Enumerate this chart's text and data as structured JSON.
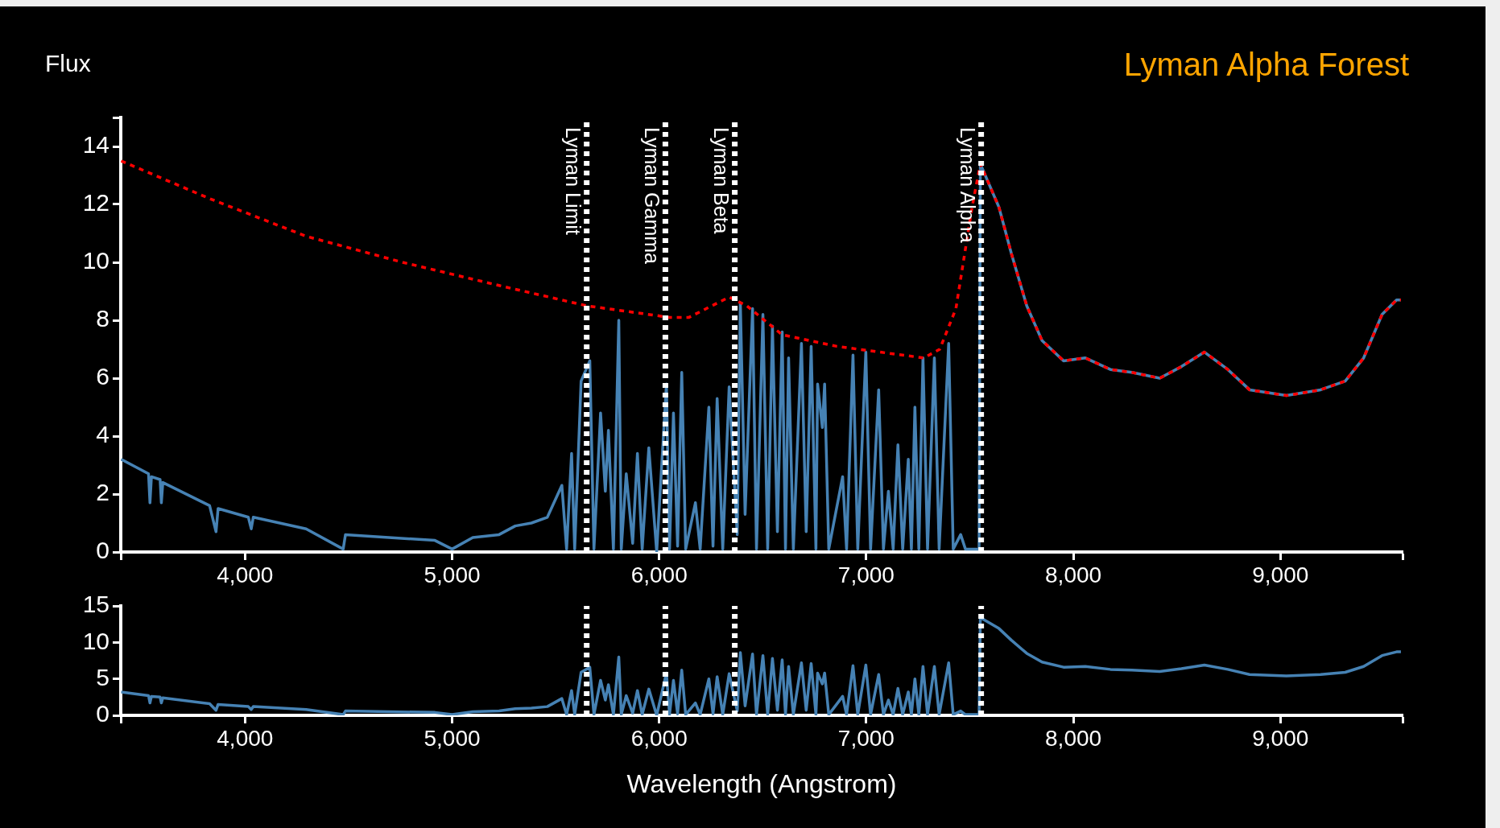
{
  "chart_data": [
    {
      "type": "line",
      "title": "Lyman Alpha Forest",
      "ylabel": "Flux",
      "xlim": [
        3400,
        9590
      ],
      "xticks": [
        {
          "value": 3400,
          "label": null
        },
        {
          "value": 4000,
          "label": "4,000"
        },
        {
          "value": 5000,
          "label": "5,000"
        },
        {
          "value": 6000,
          "label": "6,000"
        },
        {
          "value": 7000,
          "label": "7,000"
        },
        {
          "value": 8000,
          "label": "8,000"
        },
        {
          "value": 9000,
          "label": "9,000"
        },
        {
          "value": 9590,
          "label": null
        }
      ],
      "ylim": [
        0,
        15
      ],
      "yticks": [
        0,
        2,
        4,
        6,
        8,
        10,
        12,
        14,
        {
          "value": 15,
          "label": null
        }
      ],
      "series": [
        {
          "color": "#4682b4",
          "x": [
            3402,
            3534,
            3541,
            3548,
            3590,
            3596,
            3603,
            3829,
            3860,
            3870,
            4016,
            4030,
            4040,
            4295,
            4474,
            4485,
            4917,
            5000,
            5100,
            5227,
            5305,
            5383,
            5460,
            5530,
            5553,
            5577,
            5592,
            5623,
            5665,
            5685,
            5717,
            5740,
            5755,
            5779,
            5805,
            5817,
            5841,
            5872,
            5895,
            5918,
            5950,
            5988,
            6035,
            6050,
            6069,
            6089,
            6109,
            6128,
            6175,
            6198,
            6240,
            6260,
            6280,
            6307,
            6338,
            6377,
            6392,
            6415,
            6451,
            6470,
            6501,
            6524,
            6547,
            6571,
            6594,
            6610,
            6625,
            6648,
            6687,
            6710,
            6734,
            6757,
            6765,
            6788,
            6799,
            6819,
            6886,
            6905,
            6936,
            6959,
            6998,
            7021,
            7060,
            7083,
            7107,
            7130,
            7153,
            7176,
            7203,
            7218,
            7235,
            7254,
            7274,
            7296,
            7329,
            7352,
            7398,
            7420,
            7456,
            7479,
            7545,
            7551,
            7641,
            7701,
            7775,
            7849,
            7953,
            8058,
            8179,
            8283,
            8417,
            8522,
            8633,
            8746,
            8851,
            9029,
            9194,
            9313,
            9402,
            9491,
            9561,
            9582
          ],
          "values": [
            3.2,
            2.7,
            1.7,
            2.6,
            2.5,
            1.7,
            2.4,
            1.6,
            0.7,
            1.5,
            1.2,
            0.8,
            1.2,
            0.8,
            0.1,
            0.6,
            0.4,
            0.1,
            0.5,
            0.6,
            0.9,
            1.0,
            1.2,
            2.3,
            0.1,
            3.4,
            0.1,
            5.9,
            6.6,
            0.1,
            4.8,
            2.1,
            4.2,
            0.1,
            8.0,
            0.1,
            2.7,
            0.3,
            3.4,
            0.1,
            3.6,
            0.0,
            5.8,
            0.1,
            4.8,
            0.2,
            6.2,
            0.1,
            1.7,
            0.1,
            5.0,
            0.2,
            5.3,
            0.1,
            5.7,
            0.6,
            8.6,
            1.3,
            8.4,
            0.1,
            8.2,
            0.1,
            7.8,
            0.7,
            7.6,
            0.1,
            6.7,
            0.1,
            7.2,
            0.7,
            7.1,
            0.1,
            5.8,
            4.3,
            5.8,
            0.1,
            2.6,
            0.1,
            6.8,
            0.1,
            6.9,
            0.1,
            5.6,
            0.1,
            2.1,
            0.1,
            3.7,
            0.1,
            3.2,
            0.1,
            5.0,
            0.1,
            6.7,
            0.1,
            6.7,
            0.1,
            7.2,
            0.1,
            0.6,
            0.1,
            0.1,
            13.4,
            11.9,
            10.3,
            8.5,
            7.3,
            6.6,
            6.7,
            6.3,
            6.2,
            6.0,
            6.4,
            6.9,
            6.3,
            5.6,
            5.4,
            5.6,
            5.9,
            6.7,
            8.2,
            8.7,
            8.7
          ]
        },
        {
          "color": "#ff0000",
          "line_style": "dotted",
          "x": [
            3402,
            3829,
            4295,
            4761,
            5227,
            5650,
            6050,
            6144,
            6338,
            6423,
            6594,
            6858,
            7278,
            7355,
            7433,
            7511,
            7551,
            7641,
            7701,
            7775,
            7849,
            7953,
            8058,
            8179,
            8283,
            8417,
            8522,
            8633,
            8746,
            8851,
            9029,
            9194,
            9313,
            9402,
            9491,
            9561,
            9582
          ],
          "values": [
            13.5,
            12.2,
            10.9,
            10.0,
            9.2,
            8.5,
            8.1,
            8.1,
            8.8,
            8.5,
            7.5,
            7.1,
            6.7,
            7.0,
            8.4,
            11.9,
            13.4,
            11.9,
            10.3,
            8.5,
            7.3,
            6.6,
            6.7,
            6.3,
            6.2,
            6.0,
            6.4,
            6.9,
            6.3,
            5.6,
            5.4,
            5.6,
            5.9,
            6.7,
            8.2,
            8.7,
            8.7
          ]
        }
      ],
      "ref_lines": [
        {
          "axis": "x",
          "value": 5650,
          "label": "Lyman Limit",
          "color": "#ffffff",
          "line_style": "dotted"
        },
        {
          "axis": "x",
          "value": 6030,
          "label": "Lyman Gamma",
          "color": "#ffffff",
          "line_style": "dotted"
        },
        {
          "axis": "x",
          "value": 6365,
          "label": "Lyman Beta",
          "color": "#ffffff",
          "line_style": "dotted"
        },
        {
          "axis": "x",
          "value": 7555,
          "label": "Lyman Alpha",
          "color": "#ffffff",
          "line_style": "dotted"
        }
      ]
    },
    {
      "type": "line",
      "xlabel": "Wavelength (Angstrom)",
      "xlim": [
        3400,
        9590
      ],
      "xticks": [
        {
          "value": 3400,
          "label": null
        },
        {
          "value": 4000,
          "label": "4,000"
        },
        {
          "value": 5000,
          "label": "5,000"
        },
        {
          "value": 6000,
          "label": "6,000"
        },
        {
          "value": 7000,
          "label": "7,000"
        },
        {
          "value": 8000,
          "label": "8,000"
        },
        {
          "value": 9000,
          "label": "9,000"
        },
        {
          "value": 9590,
          "label": null
        }
      ],
      "ylim": [
        0,
        15
      ],
      "yticks": [
        0,
        5,
        10,
        15
      ],
      "series": [
        {
          "color": "#4682b4",
          "x": [
            3402,
            3534,
            3541,
            3548,
            3590,
            3596,
            3603,
            3829,
            3860,
            3870,
            4016,
            4030,
            4040,
            4295,
            4474,
            4485,
            4917,
            5000,
            5100,
            5227,
            5305,
            5383,
            5460,
            5530,
            5553,
            5577,
            5592,
            5623,
            5665,
            5685,
            5717,
            5740,
            5755,
            5779,
            5805,
            5817,
            5841,
            5872,
            5895,
            5918,
            5950,
            5988,
            6035,
            6050,
            6069,
            6089,
            6109,
            6128,
            6175,
            6198,
            6240,
            6260,
            6280,
            6307,
            6338,
            6377,
            6392,
            6415,
            6451,
            6470,
            6501,
            6524,
            6547,
            6571,
            6594,
            6610,
            6625,
            6648,
            6687,
            6710,
            6734,
            6757,
            6765,
            6788,
            6799,
            6819,
            6886,
            6905,
            6936,
            6959,
            6998,
            7021,
            7060,
            7083,
            7107,
            7130,
            7153,
            7176,
            7203,
            7218,
            7235,
            7254,
            7274,
            7296,
            7329,
            7352,
            7398,
            7420,
            7456,
            7479,
            7545,
            7551,
            7641,
            7701,
            7775,
            7849,
            7953,
            8058,
            8179,
            8283,
            8417,
            8522,
            8633,
            8746,
            8851,
            9029,
            9194,
            9313,
            9402,
            9491,
            9561,
            9582
          ],
          "values": [
            3.2,
            2.7,
            1.7,
            2.6,
            2.5,
            1.7,
            2.4,
            1.6,
            0.7,
            1.5,
            1.2,
            0.8,
            1.2,
            0.8,
            0.1,
            0.6,
            0.4,
            0.1,
            0.5,
            0.6,
            0.9,
            1.0,
            1.2,
            2.3,
            0.1,
            3.4,
            0.1,
            5.9,
            6.6,
            0.1,
            4.8,
            2.1,
            4.2,
            0.1,
            8.0,
            0.1,
            2.7,
            0.3,
            3.4,
            0.1,
            3.6,
            0.0,
            5.8,
            0.1,
            4.8,
            0.2,
            6.2,
            0.1,
            1.7,
            0.1,
            5.0,
            0.2,
            5.3,
            0.1,
            5.7,
            0.6,
            8.6,
            1.3,
            8.4,
            0.1,
            8.2,
            0.1,
            7.8,
            0.7,
            7.6,
            0.1,
            6.7,
            0.1,
            7.2,
            0.7,
            7.1,
            0.1,
            5.8,
            4.3,
            5.8,
            0.1,
            2.6,
            0.1,
            6.8,
            0.1,
            6.9,
            0.1,
            5.6,
            0.1,
            2.1,
            0.1,
            3.7,
            0.1,
            3.2,
            0.1,
            5.0,
            0.1,
            6.7,
            0.1,
            6.7,
            0.1,
            7.2,
            0.1,
            0.6,
            0.1,
            0.1,
            13.4,
            11.9,
            10.3,
            8.5,
            7.3,
            6.6,
            6.7,
            6.3,
            6.2,
            6.0,
            6.4,
            6.9,
            6.3,
            5.6,
            5.4,
            5.6,
            5.9,
            6.7,
            8.2,
            8.7,
            8.7
          ]
        }
      ],
      "ref_lines": [
        {
          "axis": "x",
          "value": 5650,
          "color": "#ffffff",
          "line_style": "dotted"
        },
        {
          "axis": "x",
          "value": 6030,
          "color": "#ffffff",
          "line_style": "dotted"
        },
        {
          "axis": "x",
          "value": 6365,
          "color": "#ffffff",
          "line_style": "dotted"
        },
        {
          "axis": "x",
          "value": 7555,
          "color": "#ffffff",
          "line_style": "dotted"
        }
      ]
    }
  ]
}
